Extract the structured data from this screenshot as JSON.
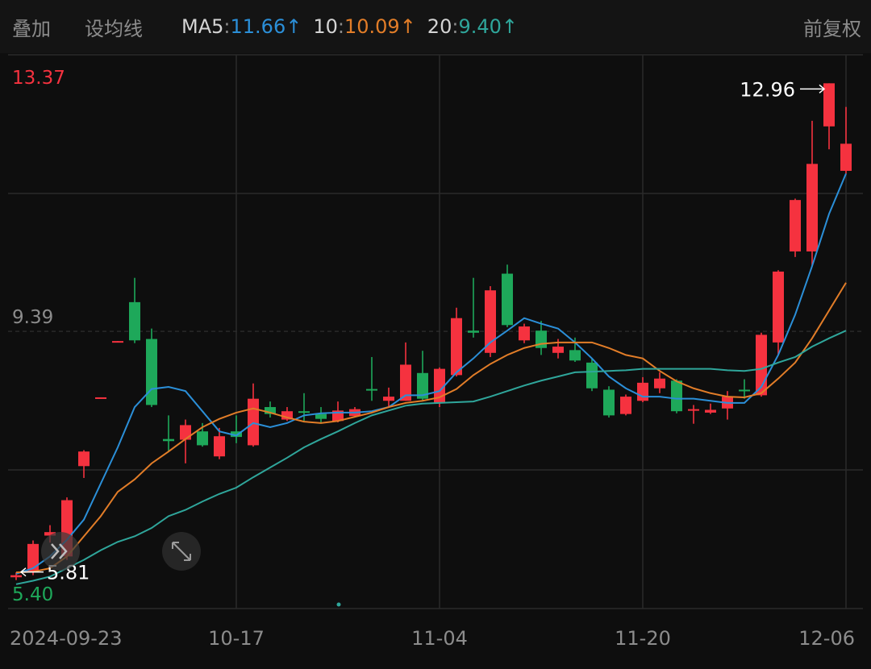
{
  "toolbar": {
    "overlay": "叠加",
    "ma_settings": "设均线",
    "adjust": "前复权"
  },
  "chart_data": {
    "type": "candlestick",
    "categories": [
      "2024-09-23",
      null,
      null,
      null,
      null,
      null,
      null,
      null,
      null,
      null,
      null,
      null,
      null,
      "10-17",
      null,
      null,
      null,
      null,
      null,
      null,
      null,
      null,
      null,
      null,
      null,
      "11-04",
      null,
      null,
      null,
      null,
      null,
      null,
      null,
      null,
      null,
      null,
      null,
      "11-20",
      null,
      null,
      null,
      null,
      null,
      null,
      null,
      null,
      null,
      null,
      null,
      "12-06"
    ],
    "open": [
      5.85,
      5.92,
      6.45,
      6.15,
      7.45,
      8.43,
      9.24,
      9.81,
      9.28,
      7.84,
      7.83,
      7.95,
      7.59,
      7.95,
      7.75,
      8.3,
      8.12,
      8.24,
      8.2,
      8.1,
      8.17,
      8.56,
      8.39,
      8.39,
      8.79,
      8.36,
      8.76,
      9.4,
      9.08,
      10.22,
      9.26,
      9.4,
      9.08,
      9.12,
      8.94,
      8.55,
      8.2,
      8.39,
      8.57,
      8.68,
      8.25,
      8.22,
      8.28,
      8.55,
      8.47,
      9.23,
      10.54,
      10.54,
      12.34,
      11.7
    ],
    "high": [
      5.92,
      6.38,
      6.6,
      7.0,
      7.68,
      8.44,
      9.25,
      10.16,
      9.43,
      8.18,
      8.12,
      8.07,
      8.0,
      8.18,
      8.64,
      8.38,
      8.3,
      8.5,
      8.3,
      8.38,
      8.3,
      9.02,
      8.58,
      9.23,
      9.11,
      8.87,
      9.73,
      10.16,
      10.04,
      10.35,
      9.5,
      9.54,
      9.28,
      9.3,
      9.0,
      8.6,
      8.48,
      8.73,
      8.8,
      8.7,
      8.33,
      8.35,
      8.53,
      8.7,
      9.37,
      10.27,
      11.3,
      12.42,
      12.96,
      12.62
    ],
    "low": [
      5.81,
      5.88,
      6.35,
      6.1,
      7.28,
      8.43,
      9.24,
      9.22,
      8.3,
      7.66,
      7.49,
      7.73,
      7.55,
      7.78,
      7.73,
      8.15,
      8.1,
      8.1,
      8.07,
      8.08,
      8.15,
      8.39,
      8.3,
      8.39,
      8.4,
      8.3,
      8.74,
      9.3,
      9.02,
      9.45,
      9.22,
      9.05,
      9.0,
      8.95,
      8.53,
      8.15,
      8.18,
      8.37,
      8.5,
      8.21,
      8.06,
      8.2,
      8.12,
      8.42,
      8.45,
      9.05,
      10.46,
      10.33,
      12.01,
      11.66
    ],
    "close": [
      5.88,
      6.33,
      6.5,
      6.96,
      7.66,
      8.44,
      9.25,
      9.26,
      8.33,
      7.81,
      8.04,
      7.75,
      7.88,
      7.87,
      8.42,
      8.2,
      8.24,
      8.22,
      8.13,
      8.25,
      8.27,
      8.54,
      8.45,
      8.91,
      8.42,
      8.85,
      9.58,
      9.37,
      9.98,
      9.48,
      9.46,
      9.15,
      9.17,
      8.97,
      8.57,
      8.18,
      8.45,
      8.65,
      8.71,
      8.24,
      8.27,
      8.26,
      8.45,
      8.53,
      9.34,
      10.25,
      11.28,
      11.8,
      12.96,
      12.09
    ],
    "up_color": "#f5323f",
    "down_color": "#1ea85a",
    "separator": ":",
    "series": [
      {
        "name": "MA5",
        "color": "#2b8fd8",
        "value_label": "11.66",
        "trend": "↑",
        "values": [
          5.9,
          5.98,
          6.15,
          6.39,
          6.68,
          7.2,
          7.72,
          8.3,
          8.56,
          8.59,
          8.53,
          8.24,
          7.95,
          7.89,
          8.07,
          8.01,
          8.07,
          8.18,
          8.21,
          8.22,
          8.22,
          8.24,
          8.3,
          8.47,
          8.47,
          8.53,
          8.8,
          9.0,
          9.23,
          9.4,
          9.58,
          9.5,
          9.43,
          9.23,
          9.0,
          8.74,
          8.57,
          8.45,
          8.45,
          8.42,
          8.42,
          8.39,
          8.36,
          8.36,
          8.59,
          9.05,
          9.63,
          10.33,
          11.08,
          11.66
        ]
      },
      {
        "name": "10",
        "color": "#e27d28",
        "value_label": "10.09",
        "trend": "↑",
        "values": [
          5.92,
          5.93,
          5.98,
          6.15,
          6.44,
          6.73,
          7.08,
          7.26,
          7.49,
          7.66,
          7.84,
          8.01,
          8.13,
          8.22,
          8.28,
          8.22,
          8.15,
          8.09,
          8.07,
          8.1,
          8.16,
          8.22,
          8.3,
          8.36,
          8.39,
          8.44,
          8.56,
          8.76,
          8.92,
          9.05,
          9.15,
          9.21,
          9.23,
          9.23,
          9.23,
          9.15,
          9.05,
          9.0,
          8.82,
          8.67,
          8.57,
          8.5,
          8.45,
          8.44,
          8.5,
          8.71,
          8.94,
          9.29,
          9.69,
          10.09
        ]
      },
      {
        "name": "20",
        "color": "#2fa69b",
        "value_label": "9.40",
        "trend": "↑",
        "values": [
          5.75,
          5.8,
          5.86,
          5.98,
          6.1,
          6.24,
          6.36,
          6.44,
          6.56,
          6.73,
          6.82,
          6.94,
          7.05,
          7.14,
          7.29,
          7.43,
          7.57,
          7.72,
          7.84,
          7.95,
          8.07,
          8.18,
          8.25,
          8.32,
          8.35,
          8.36,
          8.37,
          8.38,
          8.45,
          8.53,
          8.61,
          8.68,
          8.74,
          8.8,
          8.81,
          8.82,
          8.83,
          8.85,
          8.85,
          8.85,
          8.85,
          8.85,
          8.83,
          8.82,
          8.85,
          8.94,
          9.02,
          9.17,
          9.29,
          9.4
        ]
      }
    ],
    "ylim": [
      5.4,
      13.37
    ],
    "yticks": [
      {
        "value": 5.4,
        "label": "5.40"
      },
      9.39,
      13.37
    ]
  }
}
